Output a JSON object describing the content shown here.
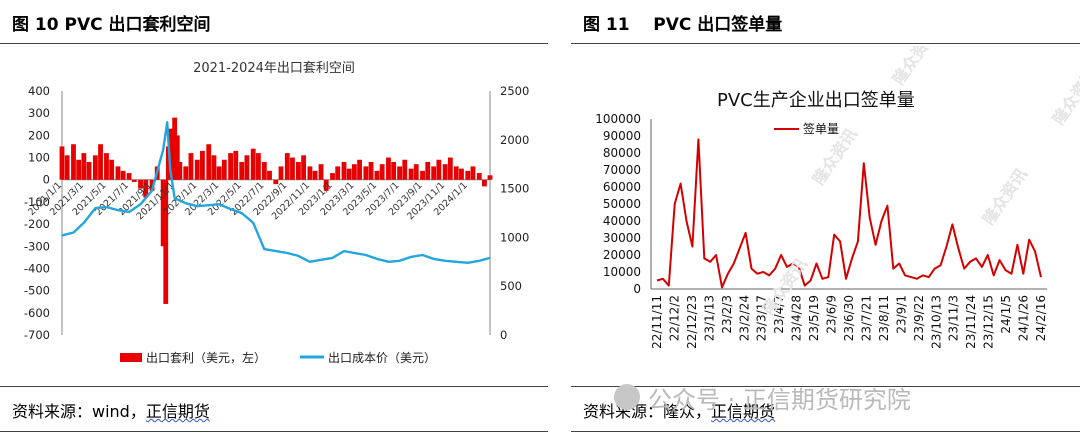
{
  "left": {
    "fig_title": "图 10 PVC 出口套利空间",
    "source_prefix": "资料来源：wind，",
    "source_name": "正信期货"
  },
  "right": {
    "fig_title": "图 11    PVC 出口签单量",
    "source_prefix": "资料来源：隆众，",
    "source_name": "正信期货"
  },
  "watermark": {
    "text": "公众号 · 正信期货研究院",
    "inner_marks": [
      "隆众资讯",
      "隆众资讯",
      "隆众资讯",
      "隆众资讯",
      "隆众资讯"
    ]
  },
  "chart_data": [
    {
      "type": "bar",
      "title": "2021-2024年出口套利空间",
      "y_left_range": [
        -700,
        400
      ],
      "y_left_ticks": [
        "400",
        "300",
        "200",
        "100",
        "0",
        "-100",
        "-200",
        "-300",
        "-400",
        "-500",
        "-600",
        "-700"
      ],
      "y_right_range": [
        0,
        2500
      ],
      "y_right_ticks": [
        "2500",
        "2000",
        "1500",
        "1000",
        "500",
        "0"
      ],
      "x_start": "2021/1/1",
      "x_end": "2024/3/1",
      "x_tick_labels": [
        "2021/1/1",
        "2021/3/1",
        "2021/5/1",
        "2021/7/1",
        "2021/9/1",
        "2021/11/1",
        "2022/1/1",
        "2022/3/1",
        "2022/5/1",
        "2022/7/1",
        "2022/9/1",
        "2022/11/1",
        "2023/1/1",
        "2023/3/1",
        "2023/5/1",
        "2023/7/1",
        "2023/9/1",
        "2023/11/1",
        "2024/1/1"
      ],
      "legend_position": "bottom",
      "series": [
        {
          "name": "出口套利（美元，左）",
          "kind": "bar",
          "axis": "left",
          "color": "#e60000",
          "points": [
            [
              "2021/1/1",
              150
            ],
            [
              "2021/1/15",
              110
            ],
            [
              "2021/2/1",
              160
            ],
            [
              "2021/2/15",
              90
            ],
            [
              "2021/3/1",
              120
            ],
            [
              "2021/3/15",
              80
            ],
            [
              "2021/4/1",
              110
            ],
            [
              "2021/4/15",
              160
            ],
            [
              "2021/5/1",
              120
            ],
            [
              "2021/5/15",
              90
            ],
            [
              "2021/6/1",
              60
            ],
            [
              "2021/6/15",
              40
            ],
            [
              "2021/7/1",
              30
            ],
            [
              "2021/7/15",
              -10
            ],
            [
              "2021/8/1",
              -40
            ],
            [
              "2021/8/15",
              -80
            ],
            [
              "2021/9/1",
              -50
            ],
            [
              "2021/9/15",
              60
            ],
            [
              "2021/10/1",
              -300
            ],
            [
              "2021/10/8",
              -560
            ],
            [
              "2021/10/15",
              150
            ],
            [
              "2021/10/22",
              230
            ],
            [
              "2021/11/1",
              280
            ],
            [
              "2021/11/8",
              200
            ],
            [
              "2021/11/15",
              80
            ],
            [
              "2021/12/1",
              60
            ],
            [
              "2021/12/15",
              120
            ],
            [
              "2022/1/1",
              90
            ],
            [
              "2022/1/15",
              130
            ],
            [
              "2022/2/1",
              160
            ],
            [
              "2022/2/15",
              110
            ],
            [
              "2022/3/1",
              60
            ],
            [
              "2022/3/15",
              90
            ],
            [
              "2022/4/1",
              120
            ],
            [
              "2022/4/15",
              130
            ],
            [
              "2022/5/1",
              80
            ],
            [
              "2022/5/15",
              110
            ],
            [
              "2022/6/1",
              140
            ],
            [
              "2022/6/15",
              120
            ],
            [
              "2022/7/1",
              80
            ],
            [
              "2022/7/15",
              40
            ],
            [
              "2022/8/1",
              -20
            ],
            [
              "2022/8/15",
              60
            ],
            [
              "2022/9/1",
              120
            ],
            [
              "2022/9/15",
              100
            ],
            [
              "2022/10/1",
              80
            ],
            [
              "2022/10/15",
              110
            ],
            [
              "2022/11/1",
              60
            ],
            [
              "2022/11/15",
              40
            ],
            [
              "2022/12/1",
              70
            ],
            [
              "2022/12/15",
              -50
            ],
            [
              "2023/1/1",
              30
            ],
            [
              "2023/1/15",
              60
            ],
            [
              "2023/2/1",
              80
            ],
            [
              "2023/2/15",
              50
            ],
            [
              "2023/3/1",
              70
            ],
            [
              "2023/3/15",
              90
            ],
            [
              "2023/4/1",
              60
            ],
            [
              "2023/4/15",
              80
            ],
            [
              "2023/5/1",
              40
            ],
            [
              "2023/5/15",
              70
            ],
            [
              "2023/6/1",
              100
            ],
            [
              "2023/6/15",
              80
            ],
            [
              "2023/7/1",
              60
            ],
            [
              "2023/7/15",
              90
            ],
            [
              "2023/8/1",
              50
            ],
            [
              "2023/8/15",
              70
            ],
            [
              "2023/9/1",
              40
            ],
            [
              "2023/9/15",
              80
            ],
            [
              "2023/10/1",
              60
            ],
            [
              "2023/10/15",
              90
            ],
            [
              "2023/11/1",
              70
            ],
            [
              "2023/11/15",
              100
            ],
            [
              "2023/12/1",
              60
            ],
            [
              "2023/12/15",
              50
            ],
            [
              "2024/1/1",
              40
            ],
            [
              "2024/1/15",
              60
            ],
            [
              "2024/2/1",
              30
            ],
            [
              "2024/2/15",
              -30
            ],
            [
              "2024/3/1",
              20
            ]
          ]
        },
        {
          "name": "出口成本价（美元）",
          "kind": "line",
          "axis": "right",
          "color": "#22a6dd",
          "points": [
            [
              "2021/1/1",
              1020
            ],
            [
              "2021/2/1",
              1050
            ],
            [
              "2021/3/1",
              1150
            ],
            [
              "2021/4/1",
              1300
            ],
            [
              "2021/5/1",
              1310
            ],
            [
              "2021/6/1",
              1280
            ],
            [
              "2021/7/1",
              1260
            ],
            [
              "2021/8/1",
              1340
            ],
            [
              "2021/9/1",
              1480
            ],
            [
              "2021/10/1",
              1900
            ],
            [
              "2021/10/12",
              2180
            ],
            [
              "2021/10/20",
              1700
            ],
            [
              "2021/11/1",
              1400
            ],
            [
              "2021/12/1",
              1350
            ],
            [
              "2022/1/1",
              1320
            ],
            [
              "2022/2/1",
              1330
            ],
            [
              "2022/3/1",
              1340
            ],
            [
              "2022/4/1",
              1290
            ],
            [
              "2022/5/1",
              1250
            ],
            [
              "2022/6/1",
              1150
            ],
            [
              "2022/7/1",
              880
            ],
            [
              "2022/8/1",
              860
            ],
            [
              "2022/9/1",
              840
            ],
            [
              "2022/10/1",
              810
            ],
            [
              "2022/11/1",
              750
            ],
            [
              "2022/12/1",
              770
            ],
            [
              "2023/1/1",
              790
            ],
            [
              "2023/2/1",
              860
            ],
            [
              "2023/3/1",
              840
            ],
            [
              "2023/4/1",
              820
            ],
            [
              "2023/5/1",
              780
            ],
            [
              "2023/6/1",
              750
            ],
            [
              "2023/7/1",
              760
            ],
            [
              "2023/8/1",
              800
            ],
            [
              "2023/9/1",
              820
            ],
            [
              "2023/10/1",
              780
            ],
            [
              "2023/11/1",
              760
            ],
            [
              "2023/12/1",
              750
            ],
            [
              "2024/1/1",
              740
            ],
            [
              "2024/2/1",
              760
            ],
            [
              "2024/3/1",
              790
            ]
          ]
        }
      ]
    },
    {
      "type": "line",
      "title": "PVC生产企业出口签单量",
      "y_range": [
        0,
        100000
      ],
      "y_ticks": [
        "100000",
        "90000",
        "80000",
        "70000",
        "60000",
        "50000",
        "40000",
        "30000",
        "20000",
        "10000",
        "0"
      ],
      "x_tick_labels": [
        "22/11/11",
        "22/12/2",
        "22/12/23",
        "23/1/13",
        "23/2/3",
        "23/2/24",
        "23/3/17",
        "23/4/7",
        "23/4/28",
        "23/5/19",
        "23/6/9",
        "23/6/30",
        "23/7/21",
        "23/8/11",
        "23/9/1",
        "23/9/22",
        "23/10/13",
        "23/11/3",
        "23/11/24",
        "23/12/15",
        "24/1/5",
        "24/1/26",
        "24/2/16"
      ],
      "legend_position": "top-left",
      "series": [
        {
          "name": "签单量",
          "color": "#d40000",
          "values": [
            5000,
            6000,
            2000,
            50000,
            62000,
            40000,
            25000,
            88000,
            18000,
            16000,
            20000,
            1000,
            9000,
            15000,
            24000,
            33000,
            12000,
            9000,
            10000,
            8000,
            12000,
            20000,
            13000,
            15000,
            13000,
            2000,
            5000,
            15000,
            6000,
            7000,
            32000,
            28000,
            6000,
            18000,
            28000,
            74000,
            42000,
            26000,
            40000,
            49000,
            12000,
            15000,
            8000,
            7000,
            6000,
            8000,
            7000,
            12000,
            14000,
            25000,
            38000,
            24000,
            12000,
            16000,
            18000,
            13000,
            20000,
            8000,
            17000,
            11000,
            9000,
            26000,
            9000,
            29000,
            22000,
            7000
          ]
        }
      ]
    }
  ]
}
